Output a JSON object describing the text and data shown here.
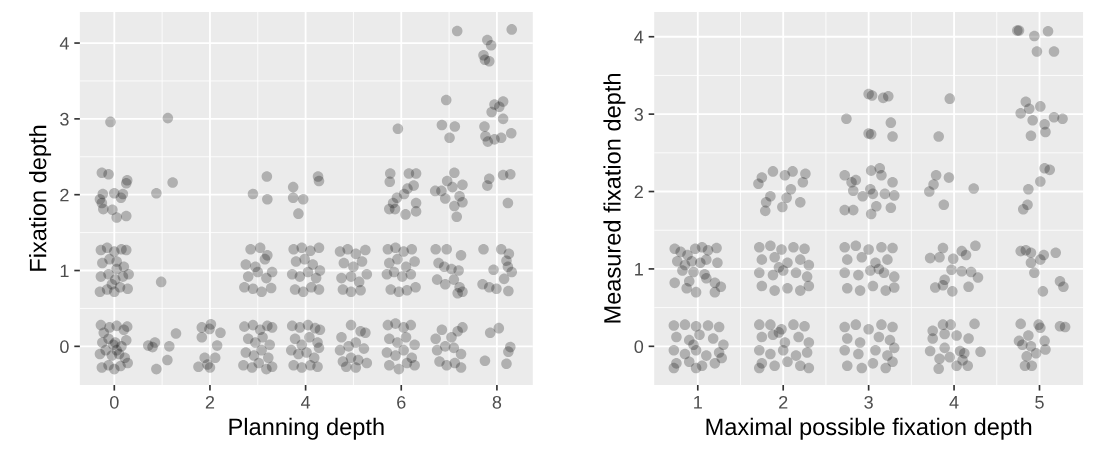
{
  "chart_data": [
    {
      "type": "scatter",
      "xlabel": "Planning depth",
      "ylabel": "Fixation depth",
      "xlim": [
        -0.72,
        8.75
      ],
      "ylim": [
        -0.51,
        4.41
      ],
      "xticks": [
        0,
        2,
        4,
        6,
        8
      ],
      "yticks": [
        0,
        1,
        2,
        3,
        4
      ],
      "grid": true,
      "marker": "circle",
      "color": "#000000",
      "x": [
        -0.08,
        -0.26,
        -0.12,
        -0.24,
        0,
        0.18,
        0.25,
        0.27,
        -0.26,
        -0.23,
        -0.04,
        0.05,
        0.25,
        0.14,
        -0.3,
        1.12,
        0.88,
        1.22,
        0.98,
        0.71,
        0.85,
        0.8,
        1.15,
        1.29,
        1.11,
        0.88,
        1.83,
        2.02,
        1.99,
        2.22,
        1.83,
        2.15,
        1.89,
        2.11,
        1.76,
        2.0,
        1.95,
        2.9,
        3.19,
        3.2,
        3.74,
        3.74,
        3.95,
        3.85,
        4.26,
        4.28,
        5.93,
        5.77,
        5.76,
        6.31,
        6.16,
        5.91,
        6.06,
        6.13,
        6.26,
        6.31,
        6.31,
        5.75,
        5.87,
        6.09,
        5.83,
        7.17,
        6.94,
        6.85,
        7.12,
        7.01,
        7.11,
        6.71,
        6.84,
        6.96,
        7.07,
        7.28,
        6.92,
        7.22,
        7.28,
        7.11,
        7.16,
        8.31,
        7.8,
        7.88,
        7.72,
        7.75,
        7.84,
        7.95,
        8.13,
        7.89,
        8.05,
        8.13,
        7.74,
        7.76,
        7.81,
        7.95,
        8.09,
        8.3,
        7.84,
        7.8,
        8.13,
        8.28,
        8.23,
        7.72,
        8.09,
        8.25,
        8.2,
        8.23,
        8.31,
        7.93,
        8.15,
        7.7,
        7.84,
        7.99,
        8.24,
        7.86,
        8.04,
        8.28,
        8.24,
        7.75,
        8.2,
        -0.28,
        -0.22,
        -0.1,
        0.05,
        0.2,
        0.27,
        -0.25,
        -0.12,
        0.02,
        0.15,
        0.25,
        -0.3,
        -0.18,
        -0.05,
        0.1,
        0.22,
        -0.26,
        -0.12,
        0.0,
        0.13,
        0.28,
        -0.02,
        0.05,
        -0.28,
        -0.15,
        0.0,
        0.15,
        0.25,
        -0.25,
        -0.1,
        0.05,
        0.2,
        -0.28,
        -0.12,
        0.02,
        0.18,
        0.3,
        -0.3,
        -0.15,
        0.0,
        0.12,
        0.28,
        0.05,
        -0.05,
        2.72,
        2.9,
        3.05,
        3.2,
        3.3,
        2.8,
        2.95,
        3.1,
        3.25,
        2.75,
        2.92,
        3.08,
        3.22,
        2.7,
        2.88,
        3.02,
        3.18,
        3.3,
        2.85,
        3.05,
        3.2,
        2.75,
        2.95,
        3.15,
        3.3,
        2.8,
        3.0,
        3.18,
        2.72,
        2.9,
        3.08,
        3.28,
        3.72,
        3.88,
        4.05,
        4.2,
        4.3,
        3.78,
        3.92,
        4.08,
        4.25,
        3.7,
        3.85,
        4.02,
        4.18,
        4.28,
        3.75,
        3.92,
        4.1,
        4.25,
        3.75,
        3.92,
        4.1,
        4.28,
        3.8,
        3.98,
        4.15,
        4.3,
        3.72,
        3.88,
        4.05,
        4.22,
        3.78,
        3.95,
        4.12,
        4.28,
        4.75,
        4.95,
        5.15,
        5.25,
        4.72,
        4.9,
        5.05,
        5.22,
        4.78,
        4.95,
        5.1,
        5.28,
        4.85,
        5.05,
        4.72,
        4.88,
        5.05,
        5.25,
        4.8,
        5.0,
        5.18,
        4.75,
        4.95,
        5.12,
        5.28,
        4.78,
        4.95,
        5.15,
        5.72,
        5.88,
        6.05,
        6.2,
        5.75,
        5.92,
        6.1,
        6.28,
        5.7,
        5.88,
        6.05,
        6.22,
        5.75,
        5.95,
        6.12,
        6.28,
        5.72,
        5.88,
        6.05,
        6.22,
        5.75,
        5.92,
        6.1,
        6.28,
        5.7,
        5.85,
        6.02,
        6.2,
        5.78,
        5.95,
        6.12,
        6.3,
        6.72,
        6.85,
        7.05,
        7.18,
        7.28,
        6.75,
        6.92,
        7.1,
        7.25,
        6.8,
        6.95,
        7.12,
        7.25,
        6.72,
        6.95,
        7.25,
        6.78,
        6.9,
        7.05,
        7.2,
        6.75,
        6.92,
        7.1,
        7.22,
        7.28,
        7.18
      ],
      "values": [
        2.96,
        2.29,
        2.27,
        2.01,
        2.02,
        2.01,
        2.15,
        2.19,
        1.89,
        1.81,
        1.8,
        1.7,
        1.72,
        1.96,
        1.94,
        3.01,
        2.02,
        2.16,
        0.85,
        0.01,
        0.05,
        -0.01,
        0,
        0.17,
        -0.18,
        -0.3,
        0.25,
        0.29,
        0.23,
        0.18,
        0.12,
        0.01,
        -0.15,
        -0.15,
        -0.27,
        -0.28,
        -0.24,
        2.01,
        2.24,
        1.94,
        2.1,
        1.96,
        1.94,
        1.75,
        2.24,
        2.18,
        2.87,
        2.28,
        2.17,
        2.28,
        2.28,
        1.96,
        2.01,
        2.08,
        2.12,
        1.89,
        1.78,
        1.81,
        1.81,
        1.74,
        1.89,
        4.16,
        3.25,
        2.92,
        2.9,
        2.75,
        2.29,
        2.05,
        2.05,
        2.18,
        2.1,
        2.13,
        1.95,
        1.98,
        1.9,
        1.85,
        1.71,
        4.18,
        4.04,
        3.97,
        3.84,
        3.78,
        3.76,
        3.19,
        3.23,
        3.09,
        3.16,
        3.0,
        2.9,
        2.77,
        2.7,
        2.73,
        2.75,
        2.81,
        2.21,
        2.12,
        2.26,
        2.27,
        1.89,
        1.28,
        1.28,
        1.22,
        1.13,
        1.05,
        0.98,
        1.01,
        0.89,
        0.82,
        0.78,
        0.76,
        0.73,
        0.18,
        0.24,
        -0.01,
        -0.07,
        -0.19,
        -0.23,
        0.28,
        0.18,
        0.25,
        0.27,
        0.22,
        0.26,
        0.05,
        0.1,
        0.05,
        0.0,
        0.08,
        -0.1,
        -0.05,
        -0.12,
        -0.1,
        -0.15,
        -0.28,
        -0.25,
        -0.3,
        -0.26,
        -0.22,
        0.02,
        -0.05,
        1.27,
        1.3,
        1.25,
        1.28,
        1.27,
        1.1,
        1.15,
        1.12,
        1.05,
        0.92,
        0.95,
        0.88,
        0.92,
        0.95,
        0.72,
        0.75,
        0.72,
        0.78,
        0.76,
        1.02,
        0.82,
        0.26,
        0.28,
        0.22,
        0.27,
        0.25,
        0.1,
        0.05,
        0.12,
        0.02,
        -0.08,
        -0.12,
        -0.05,
        -0.15,
        -0.25,
        -0.28,
        -0.22,
        -0.3,
        -0.27,
        1.28,
        1.3,
        1.2,
        1.08,
        1.05,
        1.15,
        0.98,
        0.92,
        0.98,
        0.9,
        0.78,
        0.76,
        0.72,
        0.77,
        0.27,
        0.25,
        0.28,
        0.24,
        0.22,
        0.1,
        0.02,
        0.12,
        0.05,
        -0.05,
        -0.1,
        -0.08,
        -0.15,
        -0.02,
        -0.25,
        -0.28,
        -0.25,
        -0.27,
        1.28,
        1.3,
        1.26,
        1.3,
        1.12,
        1.15,
        1.08,
        1.0,
        0.95,
        0.92,
        0.98,
        0.9,
        0.75,
        0.72,
        0.78,
        0.75,
        0.12,
        0.28,
        0.2,
        0.18,
        -0.05,
        0.0,
        0.05,
        -0.03,
        -0.2,
        -0.15,
        -0.18,
        -0.22,
        -0.27,
        -0.28,
        1.25,
        1.28,
        1.22,
        1.27,
        1.1,
        1.05,
        1.12,
        0.9,
        0.92,
        0.85,
        0.95,
        0.75,
        0.72,
        0.74,
        0.28,
        0.3,
        0.25,
        0.28,
        0.1,
        0.05,
        0.12,
        0.02,
        -0.08,
        -0.12,
        -0.05,
        -0.15,
        -0.25,
        -0.3,
        -0.22,
        -0.25,
        1.28,
        1.3,
        1.25,
        1.28,
        1.1,
        1.15,
        1.05,
        1.12,
        0.95,
        0.98,
        0.92,
        0.95,
        0.75,
        0.72,
        0.74,
        0.78,
        0.1,
        0.22,
        0.12,
        0.2,
        0.25,
        -0.05,
        0.0,
        -0.02,
        -0.1,
        -0.2,
        -0.25,
        -0.22,
        -0.28,
        1.28,
        1.28,
        1.2,
        1.1,
        1.05,
        1.02,
        1.0,
        0.88,
        0.82,
        0.88,
        0.78,
        0.72,
        0.7
      ]
    },
    {
      "type": "scatter",
      "xlabel": "Maximal possible fixation depth",
      "ylabel": "Measured fixation depth",
      "xlim": [
        0.49,
        5.51
      ],
      "ylim": [
        -0.5,
        4.32
      ],
      "xticks": [
        1,
        2,
        3,
        4,
        5
      ],
      "yticks": [
        0,
        1,
        2,
        3,
        4
      ],
      "grid": true,
      "marker": "circle",
      "color": "#000000",
      "x": [
        1.71,
        1.75,
        1.88,
        2.02,
        2.11,
        2.26,
        2.23,
        2.09,
        1.85,
        1.8,
        1.79,
        2.04,
        1.99,
        2.2,
        2.74,
        3.0,
        3.04,
        3.17,
        3.23,
        3.26,
        3.28,
        3.0,
        3.03,
        2.72,
        2.8,
        2.85,
        3.03,
        3.13,
        3.15,
        3.28,
        2.82,
        3.02,
        3.05,
        2.93,
        3.19,
        3.3,
        2.72,
        2.82,
        3.03,
        3.09,
        3.26,
        3.95,
        3.82,
        3.71,
        3.79,
        3.94,
        4.23,
        3.88,
        3.76,
        3.72,
        3.83,
        3.87,
        3.99,
        4.09,
        4.14,
        4.25,
        3.97,
        4.09,
        4.2,
        4.28,
        3.89,
        3.78,
        3.87,
        3.98,
        4.17,
        3.75,
        3.87,
        3.96,
        4.24,
        3.89,
        4.03,
        4.17,
        3.75,
        3.89,
        4.07,
        4.31,
        3.72,
        3.83,
        3.95,
        4.12,
        4.1,
        4.16,
        3.82,
        4.03,
        4.74,
        4.76,
        4.94,
        5.1,
        4.97,
        5.17,
        4.84,
        4.78,
        4.88,
        5.01,
        4.92,
        5.17,
        5.27,
        5.06,
        5.07,
        4.9,
        5.06,
        5.12,
        5.01,
        4.87,
        4.86,
        4.81,
        4.78,
        4.84,
        4.9,
        5.05,
        5.19,
        4.9,
        4.94,
        5.01,
        5.24,
        5.28,
        5.04,
        4.78,
        4.99,
        5.01,
        5.24,
        5.3,
        4.87,
        4.76,
        4.8,
        5.06,
        4.9,
        5.07,
        4.96,
        4.85,
        4.83,
        4.91,
        0.73,
        0.8,
        0.88,
        0.97,
        1.05,
        1.12,
        1.22,
        0.76,
        0.85,
        0.93,
        1.03,
        1.1,
        1.23,
        0.82,
        0.95,
        1.08,
        0.73,
        0.9,
        1.1,
        1.2,
        1.27,
        0.87,
        0.98,
        1.2,
        0.72,
        0.85,
        0.98,
        1.12,
        1.25,
        0.75,
        0.9,
        1.02,
        1.18,
        1.3,
        0.72,
        0.85,
        0.98,
        1.1,
        1.25,
        0.75,
        0.9,
        1.05,
        1.2,
        0.72,
        0.98,
        1.28,
        0.95,
        1.72,
        1.85,
        1.98,
        2.12,
        2.25,
        1.75,
        1.88,
        2.02,
        2.18,
        2.3,
        1.72,
        1.85,
        2.0,
        2.15,
        2.28,
        1.75,
        1.9,
        2.05,
        2.2,
        2.3,
        1.72,
        1.95,
        1.72,
        1.85,
        1.98,
        2.12,
        2.25,
        1.75,
        1.9,
        2.05,
        2.2,
        2.3,
        1.72,
        1.88,
        2.0,
        2.15,
        2.28,
        1.75,
        1.9,
        2.05,
        2.2,
        2.3,
        1.95,
        2.72,
        2.85,
        3.0,
        3.15,
        3.28,
        2.75,
        2.9,
        3.12,
        3.25,
        2.72,
        2.88,
        3.08,
        3.22,
        3.3,
        2.75,
        2.92,
        3.05,
        3.2,
        3.28,
        2.72,
        2.85,
        3.0,
        3.15,
        3.28,
        2.75,
        2.92,
        3.08,
        3.22,
        2.72,
        2.88,
        3.02,
        3.18,
        3.3,
        2.75,
        2.9,
        3.05,
        3.2,
        3.3,
        3.12
      ],
      "values": [
        2.1,
        2.18,
        2.26,
        2.21,
        2.26,
        2.23,
        2.12,
        2.03,
        1.94,
        1.86,
        1.75,
        1.92,
        1.8,
        1.86,
        2.94,
        3.26,
        3.24,
        3.21,
        3.23,
        2.89,
        2.71,
        2.75,
        2.74,
        2.21,
        2.12,
        2.15,
        2.27,
        2.3,
        2.21,
        2.12,
        2.01,
        2.03,
        1.97,
        1.94,
        1.97,
        1.95,
        1.76,
        1.76,
        1.71,
        1.81,
        1.79,
        3.2,
        2.71,
        2.0,
        2.21,
        2.18,
        2.04,
        1.83,
        2.09,
        1.14,
        1.15,
        1.27,
        1.13,
        1.23,
        1.18,
        1.3,
        0.99,
        0.97,
        0.96,
        0.89,
        0.86,
        0.76,
        0.79,
        0.71,
        0.77,
        0.2,
        0.28,
        0.28,
        0.29,
        0.16,
        0.14,
        0.1,
        0.1,
        -0.02,
        -0.06,
        -0.07,
        -0.06,
        -0.16,
        -0.14,
        -0.09,
        -0.18,
        -0.25,
        -0.29,
        -0.25,
        4.08,
        4.08,
        4.01,
        4.07,
        3.81,
        3.81,
        3.16,
        3.01,
        3.07,
        3.1,
        2.92,
        2.96,
        2.94,
        2.87,
        2.77,
        2.72,
        2.3,
        2.28,
        2.13,
        2.03,
        1.83,
        1.77,
        1.23,
        1.24,
        1.21,
        1.18,
        1.21,
        1.08,
        0.95,
        1.12,
        0.84,
        0.77,
        0.71,
        0.29,
        0.28,
        0.24,
        0.26,
        0.25,
        0.14,
        0.07,
        0.02,
        0.07,
        0,
        -0.04,
        -0.09,
        -0.13,
        -0.25,
        -0.25,
        1.26,
        1.22,
        1.18,
        1.26,
        1.28,
        1.24,
        1.27,
        1.1,
        1.05,
        1.1,
        1.08,
        1.12,
        1.08,
        0.98,
        0.96,
        0.93,
        0.82,
        0.84,
        0.88,
        0.82,
        0.77,
        0.75,
        0.7,
        0.7,
        0.27,
        0.28,
        0.26,
        0.27,
        0.25,
        0.12,
        0.08,
        0.15,
        0.1,
        0.02,
        -0.05,
        -0.1,
        -0.05,
        -0.12,
        -0.08,
        -0.22,
        -0.2,
        -0.25,
        -0.22,
        -0.28,
        -0.28,
        -0.15,
        0.02,
        0.28,
        0.28,
        0.22,
        0.28,
        0.26,
        0.12,
        0.15,
        0.05,
        0.12,
        0.05,
        -0.05,
        -0.1,
        -0.05,
        -0.12,
        -0.08,
        -0.22,
        -0.25,
        -0.2,
        -0.25,
        -0.28,
        -0.28,
        0.18,
        1.28,
        1.3,
        1.25,
        1.28,
        1.26,
        1.12,
        1.15,
        1.08,
        1.12,
        1.05,
        0.95,
        0.92,
        0.98,
        0.95,
        0.9,
        0.78,
        0.72,
        0.75,
        0.72,
        0.78,
        1.02,
        0.25,
        0.28,
        0.22,
        0.28,
        0.25,
        0.1,
        0.05,
        0.12,
        0.08,
        -0.05,
        -0.1,
        -0.05,
        -0.12,
        -0.02,
        -0.25,
        -0.28,
        -0.22,
        -0.28,
        -0.2,
        1.28,
        1.3,
        1.25,
        1.28,
        1.27,
        1.12,
        1.15,
        1.08,
        1.12,
        0.95,
        0.92,
        0.98,
        0.95,
        0.9,
        0.75,
        0.72,
        0.78,
        0.72,
        0.76,
        1.0
      ]
    }
  ]
}
